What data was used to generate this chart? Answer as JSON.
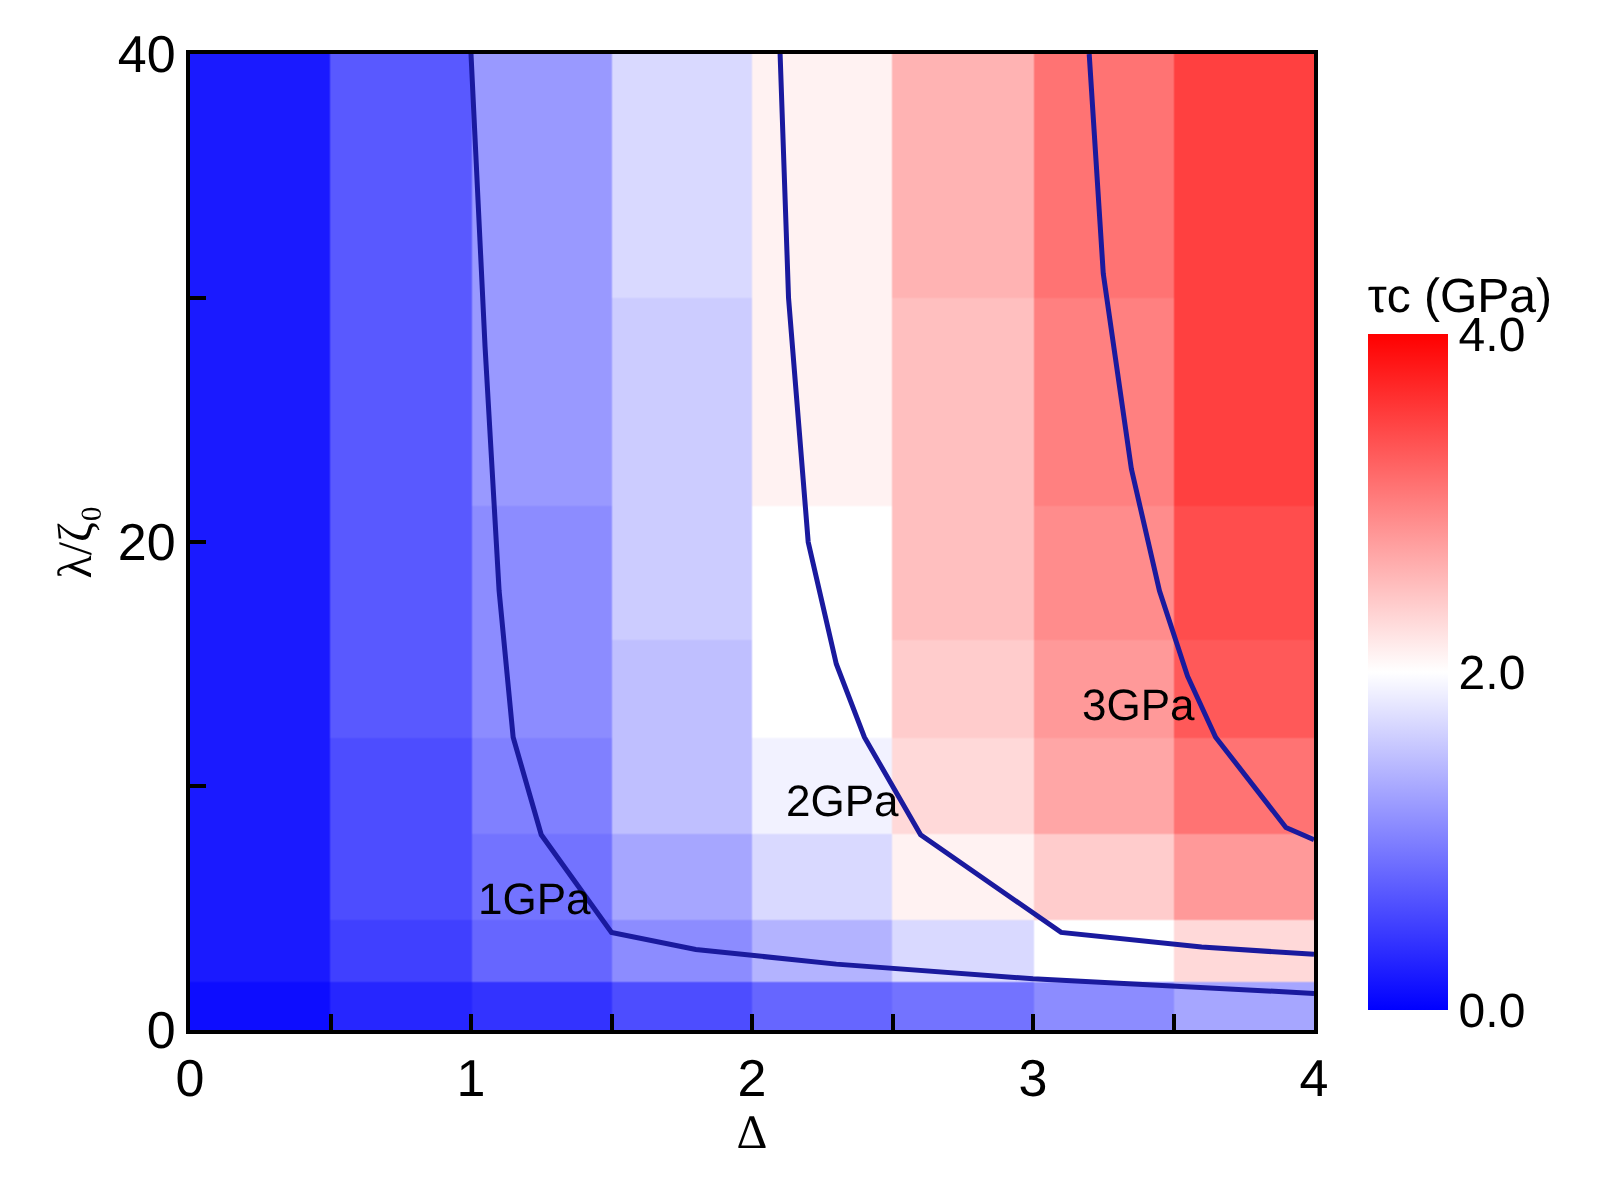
{
  "chart_data": {
    "type": "heatmap",
    "xlabel": "Δ",
    "ylabel": "λ/ζ₀",
    "clabel": "τc (GPa)",
    "x": [
      0.25,
      0.75,
      1.25,
      1.75,
      2.25,
      2.75,
      3.25,
      3.75
    ],
    "y": [
      1,
      3,
      6,
      10,
      14,
      18,
      25,
      35
    ],
    "cells": [
      [
        0.1,
        0.3,
        0.4,
        0.6,
        0.8,
        0.9,
        1.1,
        1.3
      ],
      [
        0.2,
        0.5,
        0.8,
        1.1,
        1.4,
        1.7,
        2.0,
        2.3
      ],
      [
        0.2,
        0.6,
        0.9,
        1.3,
        1.7,
        2.1,
        2.4,
        2.8
      ],
      [
        0.2,
        0.6,
        1.0,
        1.5,
        1.9,
        2.3,
        2.7,
        3.1
      ],
      [
        0.2,
        0.7,
        1.1,
        1.5,
        2.0,
        2.4,
        2.8,
        3.3
      ],
      [
        0.2,
        0.7,
        1.1,
        1.6,
        2.0,
        2.5,
        2.9,
        3.4
      ],
      [
        0.2,
        0.7,
        1.2,
        1.6,
        2.1,
        2.5,
        3.0,
        3.5
      ],
      [
        0.2,
        0.7,
        1.2,
        1.7,
        2.1,
        2.6,
        3.1,
        3.5
      ]
    ],
    "colors": [
      "#0000ff",
      "#ffffff",
      "#ff0000"
    ],
    "clim": [
      0,
      4
    ],
    "cticks": [
      {
        "value": 0,
        "label": "0.0"
      },
      {
        "value": 2,
        "label": "2.0"
      },
      {
        "value": 4,
        "label": "4.0"
      }
    ],
    "xlim": [
      0,
      4
    ],
    "ylim": [
      0,
      40
    ],
    "xticks": [
      0,
      {
        "value": 0.5,
        "label": null
      },
      1,
      {
        "value": 1.5,
        "label": null
      },
      2,
      {
        "value": 2.5,
        "label": null
      },
      3,
      {
        "value": 3.5,
        "label": null
      },
      4
    ],
    "yticks": [
      0,
      {
        "value": 10,
        "label": null
      },
      20,
      {
        "value": 30,
        "label": null
      },
      40
    ],
    "series": [
      {
        "type": "line",
        "color": "#1a1a9e",
        "x": [
          1.0,
          1.05,
          1.1,
          1.15,
          1.25,
          1.5,
          1.8,
          2.3,
          3.0,
          4.0
        ],
        "values": [
          40,
          28,
          18,
          12,
          8,
          4,
          3.3,
          2.7,
          2.1,
          1.5
        ]
      },
      {
        "type": "line",
        "color": "#1a1a9e",
        "x": [
          2.1,
          2.13,
          2.2,
          2.3,
          2.4,
          2.6,
          3.1,
          3.6,
          4.0
        ],
        "values": [
          40,
          30,
          20,
          15,
          12,
          8,
          4,
          3.4,
          3.1
        ]
      },
      {
        "type": "line",
        "color": "#1a1a9e",
        "x": [
          3.2,
          3.25,
          3.35,
          3.45,
          3.55,
          3.65,
          3.9,
          4.0
        ],
        "values": [
          40,
          31,
          23,
          18,
          14.5,
          12,
          8.3,
          7.8
        ]
      }
    ],
    "annotations": [
      {
        "text": "1GPa",
        "x": 1.5,
        "y": 4
      },
      {
        "text": "2GPa",
        "x": 2.6,
        "y": 8
      },
      {
        "text": "3GPa",
        "x": 3.65,
        "y": 12
      }
    ]
  }
}
